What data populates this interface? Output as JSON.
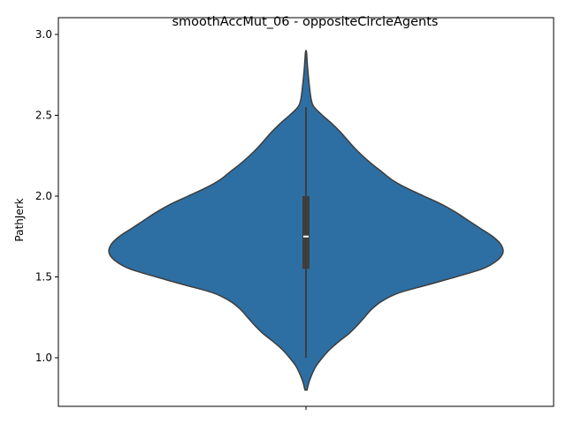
{
  "chart_data": {
    "type": "violin",
    "title": "smoothAccMut_06 - oppositeCircleAgents",
    "xlabel": "",
    "ylabel": "PathJerk",
    "ylim": [
      0.7,
      3.0
    ],
    "yticks": [
      1.0,
      1.5,
      2.0,
      2.5,
      3.0
    ],
    "ytick_labels": [
      "1.0",
      "1.5",
      "2.0",
      "2.5",
      "3.0"
    ],
    "grid": false,
    "violin": {
      "color": "#2e6fa3",
      "outline_color": "#3d3d3d",
      "density_profile": [
        {
          "y": 0.8,
          "w": 0.01
        },
        {
          "y": 0.85,
          "w": 0.03
        },
        {
          "y": 0.9,
          "w": 0.06
        },
        {
          "y": 0.95,
          "w": 0.1
        },
        {
          "y": 1.0,
          "w": 0.16
        },
        {
          "y": 1.05,
          "w": 0.23
        },
        {
          "y": 1.1,
          "w": 0.32
        },
        {
          "y": 1.15,
          "w": 0.42
        },
        {
          "y": 1.2,
          "w": 0.5
        },
        {
          "y": 1.25,
          "w": 0.57
        },
        {
          "y": 1.3,
          "w": 0.64
        },
        {
          "y": 1.35,
          "w": 0.74
        },
        {
          "y": 1.4,
          "w": 0.9
        },
        {
          "y": 1.45,
          "w": 1.18
        },
        {
          "y": 1.5,
          "w": 1.46
        },
        {
          "y": 1.55,
          "w": 1.72
        },
        {
          "y": 1.6,
          "w": 1.86
        },
        {
          "y": 1.65,
          "w": 1.92
        },
        {
          "y": 1.7,
          "w": 1.9
        },
        {
          "y": 1.75,
          "w": 1.82
        },
        {
          "y": 1.8,
          "w": 1.7
        },
        {
          "y": 1.85,
          "w": 1.58
        },
        {
          "y": 1.9,
          "w": 1.46
        },
        {
          "y": 1.95,
          "w": 1.32
        },
        {
          "y": 2.0,
          "w": 1.15
        },
        {
          "y": 2.05,
          "w": 0.98
        },
        {
          "y": 2.1,
          "w": 0.84
        },
        {
          "y": 2.15,
          "w": 0.74
        },
        {
          "y": 2.2,
          "w": 0.64
        },
        {
          "y": 2.25,
          "w": 0.55
        },
        {
          "y": 2.3,
          "w": 0.47
        },
        {
          "y": 2.35,
          "w": 0.4
        },
        {
          "y": 2.4,
          "w": 0.33
        },
        {
          "y": 2.45,
          "w": 0.25
        },
        {
          "y": 2.5,
          "w": 0.16
        },
        {
          "y": 2.55,
          "w": 0.08
        },
        {
          "y": 2.6,
          "w": 0.05
        },
        {
          "y": 2.7,
          "w": 0.03
        },
        {
          "y": 2.8,
          "w": 0.015
        },
        {
          "y": 2.89,
          "w": 0.005
        }
      ],
      "box": {
        "whisker_low": 1.0,
        "q1": 1.55,
        "median": 1.75,
        "q3": 2.0,
        "whisker_high": 2.55
      }
    }
  }
}
